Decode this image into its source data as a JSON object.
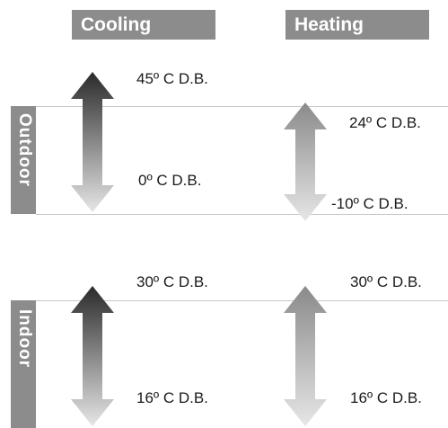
{
  "headers": {
    "cooling": "Cooling",
    "heating": "Heating"
  },
  "sections": {
    "outdoor": "Outdoor",
    "indoor": "Indoor"
  },
  "outdoor": {
    "cooling": {
      "max": "45º C D.B.",
      "min": "0º C D.B."
    },
    "heating": {
      "max": "24º C D.B.",
      "min": "-10º C D.B."
    }
  },
  "indoor": {
    "cooling": {
      "max": "30º C D.B.",
      "min": "16º C D.B."
    },
    "heating": {
      "max": "30º C D.B.",
      "min": "16º C D.B."
    }
  },
  "colors": {
    "header_bg": "#8c8c8c",
    "arrow_top_dark": "#2a2a2a",
    "arrow_top_light": "#8a8a8a",
    "arrow_bottom": "#e4e4e4"
  }
}
